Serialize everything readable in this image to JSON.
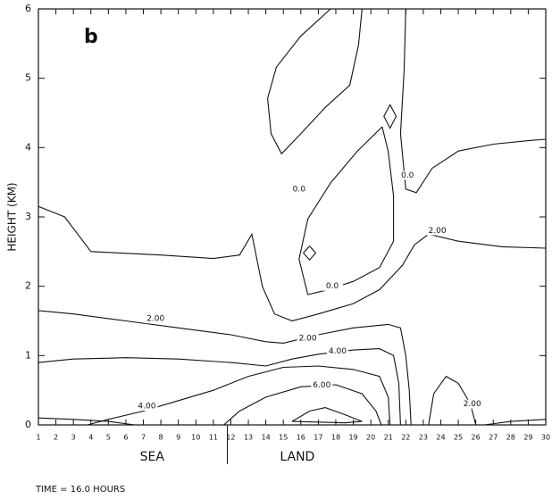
{
  "chart_data": {
    "type": "contour",
    "panel_label": "b",
    "y_label": "HEIGHT (KM)",
    "footer": "TIME = 16.0 HOURS",
    "xlim": [
      1,
      30
    ],
    "ylim": [
      0,
      6
    ],
    "xticks": [
      1,
      2,
      3,
      4,
      5,
      6,
      7,
      8,
      9,
      10,
      11,
      12,
      13,
      14,
      15,
      16,
      17,
      18,
      19,
      20,
      21,
      22,
      23,
      24,
      25,
      26,
      27,
      28,
      29,
      30
    ],
    "yticks": [
      0,
      1,
      2,
      3,
      4,
      5,
      6
    ],
    "regions": [
      {
        "label": "SEA",
        "x": 7.5
      },
      {
        "label": "LAND",
        "x": 15.8
      }
    ],
    "boundary_x": 11.8,
    "contours": [
      {
        "x": [
          17.7,
          16.0,
          14.6,
          14.1,
          14.3,
          14.9,
          16.0,
          17.4,
          18.8,
          19.3,
          19.5
        ],
        "y": [
          6,
          5.61,
          5.16,
          4.71,
          4.2,
          3.91,
          4.2,
          4.58,
          4.9,
          5.48,
          6
        ]
      },
      {
        "x": [
          21.1,
          21.45,
          21.1,
          20.75,
          21.1
        ],
        "y": [
          4.62,
          4.45,
          4.28,
          4.45,
          4.62
        ]
      },
      {
        "x": [
          20.65,
          19.2,
          17.7,
          16.4,
          15.9,
          16.4,
          17.4,
          19.0,
          20.5,
          21.3,
          21.3,
          21.0,
          20.65
        ],
        "y": [
          4.3,
          3.94,
          3.49,
          2.97,
          2.39,
          1.88,
          1.94,
          2.07,
          2.27,
          2.65,
          3.3,
          3.94,
          4.3
        ]
      },
      {
        "x": [
          16.5,
          16.85,
          16.5,
          16.15,
          16.5
        ],
        "y": [
          2.58,
          2.48,
          2.38,
          2.48,
          2.58
        ]
      },
      {
        "x": [
          22.0,
          21.9,
          21.7,
          22.0,
          22.6,
          23.5,
          25,
          27,
          29,
          30
        ],
        "y": [
          6,
          5.1,
          4.2,
          3.4,
          3.35,
          3.7,
          3.95,
          4.05,
          4.1,
          4.12
        ]
      },
      {
        "x": [
          1,
          2.5,
          4,
          8,
          11,
          12.5,
          13.2,
          13.8,
          14.5,
          15.5,
          17,
          19,
          20.5,
          21.8,
          22.5,
          23.3,
          25,
          27.5,
          30
        ],
        "y": [
          3.15,
          3.0,
          2.5,
          2.45,
          2.4,
          2.45,
          2.75,
          2.0,
          1.6,
          1.5,
          1.6,
          1.75,
          1.95,
          2.3,
          2.6,
          2.75,
          2.65,
          2.57,
          2.55
        ]
      },
      {
        "x": [
          1,
          3,
          6,
          9,
          12,
          14,
          15,
          17,
          19,
          21,
          21.7,
          22,
          22.2,
          22.3
        ],
        "y": [
          1.65,
          1.6,
          1.5,
          1.4,
          1.3,
          1.2,
          1.18,
          1.3,
          1.4,
          1.45,
          1.4,
          1.0,
          0.5,
          0
        ]
      },
      {
        "x": [
          1,
          3,
          6,
          9,
          12,
          14,
          15.5,
          17,
          19,
          20.5,
          21.3,
          21.6,
          21.7
        ],
        "y": [
          0.9,
          0.95,
          0.97,
          0.95,
          0.9,
          0.85,
          0.95,
          1.02,
          1.08,
          1.1,
          1.0,
          0.6,
          0
        ]
      },
      {
        "x": [
          3.8,
          5,
          7,
          9,
          11,
          13,
          15,
          17,
          19,
          20.5,
          21,
          21.1
        ],
        "y": [
          0,
          0.08,
          0.2,
          0.35,
          0.5,
          0.7,
          0.83,
          0.85,
          0.8,
          0.7,
          0.4,
          0
        ]
      },
      {
        "x": [
          11.6,
          12.5,
          14,
          16,
          18,
          19.5,
          20.3,
          20.6
        ],
        "y": [
          0,
          0.2,
          0.4,
          0.55,
          0.58,
          0.45,
          0.2,
          0
        ]
      },
      {
        "x": [
          15.5,
          16.5,
          17.4,
          18.5,
          19.5,
          18.5,
          15.5
        ],
        "y": [
          0.05,
          0.2,
          0.25,
          0.15,
          0.05,
          0.03,
          0.05
        ]
      },
      {
        "x": [
          23.3,
          23.6,
          24.3,
          25.0,
          25.7,
          26.0
        ],
        "y": [
          0,
          0.45,
          0.7,
          0.6,
          0.3,
          0
        ]
      },
      {
        "x": [
          1,
          3,
          5,
          6.5
        ],
        "y": [
          0.1,
          0.08,
          0.05,
          0
        ]
      },
      {
        "x": [
          26.5,
          28,
          30
        ],
        "y": [
          0,
          0.05,
          0.08
        ]
      }
    ],
    "contour_labels": [
      {
        "text": "0.0",
        "x": 15.9,
        "y": 3.4
      },
      {
        "text": "0.0",
        "x": 22.1,
        "y": 3.6
      },
      {
        "text": "2.00",
        "x": 23.8,
        "y": 2.8
      },
      {
        "text": "0.0",
        "x": 17.8,
        "y": 2.0
      },
      {
        "text": "2.00",
        "x": 7.7,
        "y": 1.53
      },
      {
        "text": "2.00",
        "x": 16.4,
        "y": 1.25
      },
      {
        "text": "4.00",
        "x": 18.1,
        "y": 1.06
      },
      {
        "text": "4.00",
        "x": 7.2,
        "y": 0.27
      },
      {
        "text": "6.00",
        "x": 17.2,
        "y": 0.57
      },
      {
        "text": "2.00",
        "x": 25.8,
        "y": 0.3
      }
    ]
  }
}
